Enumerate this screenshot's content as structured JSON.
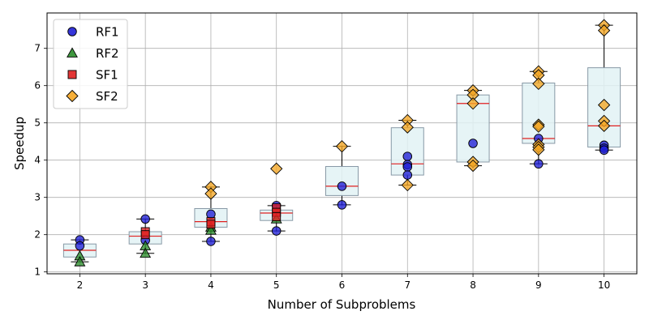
{
  "chart_data": {
    "type": "scatter",
    "title": "",
    "xlabel": "Number of Subproblems",
    "ylabel": "Speedup",
    "xlim": [
      1.5,
      10.5
    ],
    "ylim": [
      0.95,
      7.95
    ],
    "x_ticks": [
      "2",
      "3",
      "4",
      "5",
      "6",
      "7",
      "8",
      "9",
      "10"
    ],
    "y_ticks": [
      "1",
      "2",
      "3",
      "4",
      "5",
      "6",
      "7"
    ],
    "grid": true,
    "legend_position": "top-left",
    "colors": {
      "RF1": "#1f1fd6",
      "RF2": "#2a8c2a",
      "SF1": "#e02020",
      "SF2": "#f5a623",
      "box_fill": "#e2f2f5",
      "box_edge": "#8899a6",
      "median": "#e02020"
    },
    "series": [
      {
        "name": "RF1",
        "marker": "circle",
        "points": [
          [
            2,
            1.86
          ],
          [
            2,
            1.7
          ],
          [
            3,
            2.42
          ],
          [
            3,
            1.85
          ],
          [
            4,
            2.55
          ],
          [
            4,
            1.82
          ],
          [
            5,
            2.78
          ],
          [
            5,
            2.1
          ],
          [
            6,
            3.3
          ],
          [
            6,
            2.8
          ],
          [
            7,
            4.1
          ],
          [
            7,
            3.88
          ],
          [
            7,
            3.82
          ],
          [
            7,
            3.6
          ],
          [
            8,
            4.45
          ],
          [
            9,
            4.58
          ],
          [
            9,
            3.9
          ],
          [
            10,
            4.4
          ],
          [
            10,
            4.32
          ],
          [
            10,
            4.27
          ]
        ]
      },
      {
        "name": "RF2",
        "marker": "triangle",
        "points": [
          [
            2,
            1.43
          ],
          [
            2,
            1.27
          ],
          [
            3,
            1.7
          ],
          [
            3,
            1.5
          ],
          [
            4,
            2.2
          ],
          [
            4,
            2.12
          ],
          [
            5,
            2.42
          ]
        ]
      },
      {
        "name": "SF1",
        "marker": "square",
        "points": [
          [
            3,
            2.08
          ],
          [
            3,
            2.0
          ],
          [
            4,
            2.35
          ],
          [
            4,
            2.28
          ],
          [
            5,
            2.72
          ],
          [
            5,
            2.6
          ],
          [
            5,
            2.48
          ]
        ]
      },
      {
        "name": "SF2",
        "marker": "diamond",
        "points": [
          [
            4,
            3.28
          ],
          [
            4,
            3.1
          ],
          [
            5,
            3.77
          ],
          [
            6,
            4.37
          ],
          [
            7,
            5.07
          ],
          [
            7,
            4.88
          ],
          [
            7,
            3.33
          ],
          [
            8,
            5.87
          ],
          [
            8,
            5.75
          ],
          [
            8,
            5.52
          ],
          [
            8,
            3.95
          ],
          [
            8,
            3.85
          ],
          [
            9,
            6.38
          ],
          [
            9,
            6.28
          ],
          [
            9,
            6.05
          ],
          [
            9,
            4.95
          ],
          [
            9,
            4.9
          ],
          [
            9,
            4.42
          ],
          [
            9,
            4.35
          ],
          [
            9,
            4.28
          ],
          [
            10,
            7.62
          ],
          [
            10,
            7.48
          ],
          [
            10,
            5.48
          ],
          [
            10,
            5.05
          ],
          [
            10,
            4.92
          ]
        ]
      }
    ],
    "boxes": [
      {
        "x": 2,
        "q1": 1.4,
        "median": 1.58,
        "q3": 1.75,
        "whisker_low": 1.27,
        "whisker_high": 1.86
      },
      {
        "x": 3,
        "q1": 1.75,
        "median": 1.96,
        "q3": 2.08,
        "whisker_low": 1.5,
        "whisker_high": 2.42
      },
      {
        "x": 4,
        "q1": 2.2,
        "median": 2.35,
        "q3": 2.7,
        "whisker_low": 1.82,
        "whisker_high": 3.28
      },
      {
        "x": 5,
        "q1": 2.38,
        "median": 2.58,
        "q3": 2.66,
        "whisker_low": 2.1,
        "whisker_high": 2.78
      },
      {
        "x": 6,
        "q1": 3.05,
        "median": 3.3,
        "q3": 3.83,
        "whisker_low": 2.8,
        "whisker_high": 4.37
      },
      {
        "x": 7,
        "q1": 3.6,
        "median": 3.9,
        "q3": 4.87,
        "whisker_low": 3.33,
        "whisker_high": 5.07
      },
      {
        "x": 8,
        "q1": 3.95,
        "median": 5.52,
        "q3": 5.75,
        "whisker_low": 3.85,
        "whisker_high": 5.87
      },
      {
        "x": 9,
        "q1": 4.45,
        "median": 4.58,
        "q3": 6.07,
        "whisker_low": 3.9,
        "whisker_high": 6.38
      },
      {
        "x": 10,
        "q1": 4.35,
        "median": 4.92,
        "q3": 6.48,
        "whisker_low": 4.27,
        "whisker_high": 7.62
      }
    ]
  }
}
